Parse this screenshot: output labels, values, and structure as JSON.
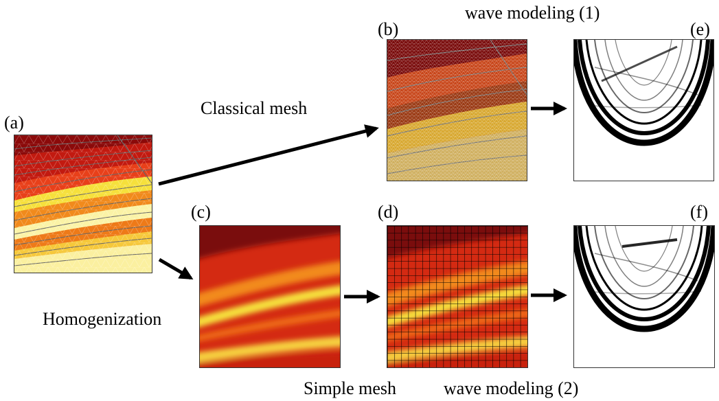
{
  "panel_labels": {
    "a": "(a)",
    "b": "(b)",
    "c": "(c)",
    "d": "(d)",
    "e": "(e)",
    "f": "(f)"
  },
  "captions": {
    "classical_mesh": "Classical mesh",
    "homogenization": "Homogenization",
    "simple_mesh": "Simple mesh",
    "wave_modeling_1": "wave modeling (1)",
    "wave_modeling_2": "wave modeling (2)"
  },
  "colors": {
    "dark_red": "#8b0a0a",
    "red": "#d42a12",
    "orange": "#ee6a14",
    "yellow": "#f6e03c",
    "pale_yellow": "#fbf3a6",
    "grid_line": "#000000",
    "mesh_line": "#7a7a7a",
    "wave_black": "#000000"
  }
}
